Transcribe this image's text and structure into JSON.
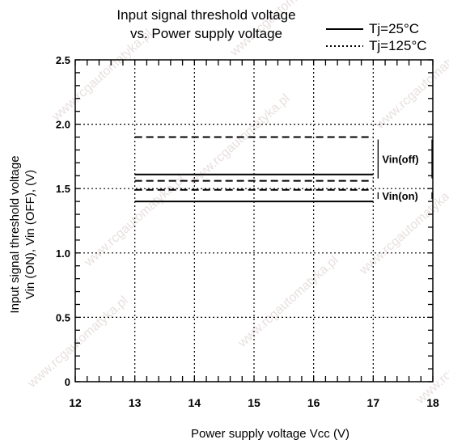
{
  "chart_data": {
    "type": "line",
    "title": [
      "Input signal threshold voltage",
      "vs. Power supply voltage"
    ],
    "xlabel": "Power supply voltage  Vcc (V)",
    "ylabel": [
      "Input signal threshold voltage",
      "Vin (ON),  Vin (OFF),  (V)"
    ],
    "xlim": [
      12,
      18
    ],
    "ylim": [
      0,
      2.5
    ],
    "x_ticks": [
      "12",
      "13",
      "14",
      "15",
      "16",
      "17",
      "18"
    ],
    "y_ticks": [
      "0",
      "0.5",
      "1.0",
      "1.5",
      "2.0",
      "2.5"
    ],
    "grid": true,
    "legend_position": "top-right",
    "legend": [
      {
        "label": "Tj=25°C",
        "style": "solid"
      },
      {
        "label": "Tj=125°C",
        "style": "dotted"
      }
    ],
    "series": [
      {
        "temp": "Tj=125°C",
        "style": "dashed",
        "x": [
          13,
          17
        ],
        "y": [
          1.9,
          1.9
        ]
      },
      {
        "temp": "Tj=25°C",
        "style": "solid",
        "x": [
          13,
          17
        ],
        "y": [
          1.61,
          1.61
        ]
      },
      {
        "temp": "Tj=125°C",
        "style": "dashed",
        "x": [
          13,
          17
        ],
        "y": [
          1.56,
          1.56
        ]
      },
      {
        "temp": "Tj=125°C",
        "style": "dashed",
        "x": [
          13,
          17
        ],
        "y": [
          1.49,
          1.49
        ]
      },
      {
        "temp": "Tj=25°C",
        "style": "solid",
        "x": [
          13,
          17
        ],
        "y": [
          1.4,
          1.4
        ]
      }
    ],
    "annotations": [
      {
        "text": "Vin(off)",
        "y": [
          1.56,
          1.9
        ]
      },
      {
        "text": "Vin(on)",
        "y": [
          1.4,
          1.49
        ]
      }
    ],
    "watermark": "www.rcgautomatyka.pl"
  }
}
